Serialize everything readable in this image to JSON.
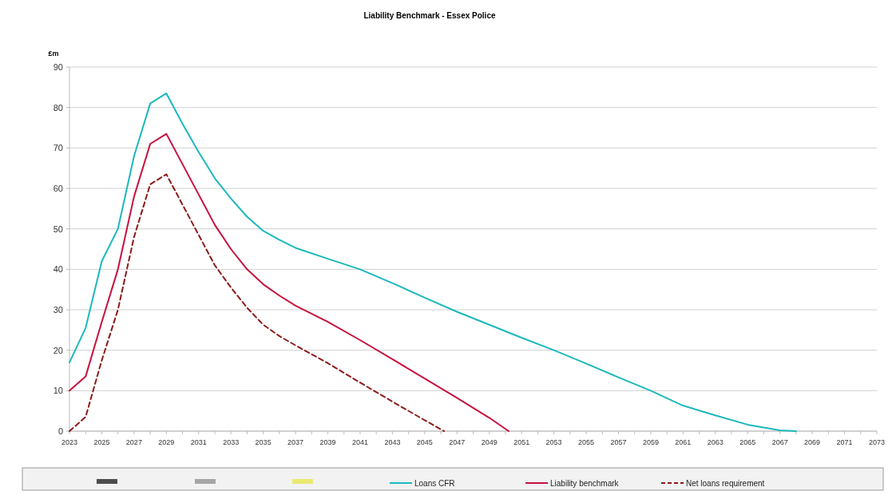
{
  "chart_data": {
    "type": "line",
    "title": "Liability Benchmark - Essex Police",
    "ylabel": "£m",
    "xlim": [
      2023,
      2073
    ],
    "xticks": [
      2023,
      {
        "value": 2024,
        "label": null
      },
      2025,
      {
        "value": 2026,
        "label": null
      },
      2027,
      {
        "value": 2028,
        "label": null
      },
      2029,
      {
        "value": 2030,
        "label": null
      },
      2031,
      {
        "value": 2032,
        "label": null
      },
      2033,
      {
        "value": 2034,
        "label": null
      },
      2035,
      {
        "value": 2036,
        "label": null
      },
      2037,
      {
        "value": 2038,
        "label": null
      },
      2039,
      {
        "value": 2040,
        "label": null
      },
      2041,
      {
        "value": 2042,
        "label": null
      },
      2043,
      {
        "value": 2044,
        "label": null
      },
      2045,
      {
        "value": 2046,
        "label": null
      },
      2047,
      {
        "value": 2048,
        "label": null
      },
      2049,
      {
        "value": 2050,
        "label": null
      },
      2051,
      {
        "value": 2052,
        "label": null
      },
      2053,
      {
        "value": 2054,
        "label": null
      },
      2055,
      {
        "value": 2056,
        "label": null
      },
      2057,
      {
        "value": 2058,
        "label": null
      },
      2059,
      {
        "value": 2060,
        "label": null
      },
      2061,
      {
        "value": 2062,
        "label": null
      },
      2063,
      {
        "value": 2064,
        "label": null
      },
      2065,
      {
        "value": 2066,
        "label": null
      },
      2067,
      {
        "value": 2068,
        "label": null
      },
      2069,
      {
        "value": 2070,
        "label": null
      },
      2071,
      {
        "value": 2072,
        "label": null
      },
      2073
    ],
    "ylim": [
      0,
      90
    ],
    "yticks": [
      0,
      10,
      20,
      30,
      40,
      50,
      60,
      70,
      80,
      90
    ],
    "grid": "y",
    "legend": "bottom",
    "marker": "none",
    "series": [
      {
        "name": "Loans CFR",
        "color": "#1cb8bd",
        "line_style": "solid",
        "x": [
          2023,
          2024,
          2025,
          2026,
          2027,
          2028,
          2029,
          2030,
          2031,
          2032,
          2033,
          2034,
          2035,
          2036,
          2037,
          2039,
          2041,
          2043,
          2045,
          2047,
          2049,
          2051,
          2053,
          2055,
          2057,
          2059,
          2061,
          2063,
          2065,
          2067,
          2068
        ],
        "values": [
          17,
          25.5,
          42,
          50,
          68,
          81,
          83.5,
          76,
          69,
          62.5,
          57.5,
          53,
          49.5,
          47.3,
          45.3,
          42.6,
          40,
          36.6,
          33,
          29.5,
          26.3,
          23.1,
          20,
          16.7,
          13.3,
          10,
          6.3,
          3.9,
          1.6,
          0.2,
          0
        ]
      },
      {
        "name": "Liability benchmark",
        "color": "#c8103e",
        "line_style": "solid",
        "x": [
          2023,
          2024,
          2025,
          2026,
          2027,
          2028,
          2029,
          2030,
          2031,
          2032,
          2033,
          2034,
          2035,
          2036,
          2037,
          2039,
          2041,
          2043,
          2045,
          2047,
          2049,
          2050.2
        ],
        "values": [
          10,
          13.5,
          27,
          40,
          58,
          71,
          73.5,
          66,
          58.5,
          51,
          45,
          40,
          36.3,
          33.5,
          31,
          27,
          22.5,
          17.8,
          13,
          8.2,
          3.3,
          0
        ]
      },
      {
        "name": "Net loans requirement",
        "color": "#8b1a1a",
        "line_style": "dashed",
        "x": [
          2023,
          2024,
          2025,
          2026,
          2027,
          2028,
          2029,
          2030,
          2031,
          2032,
          2033,
          2034,
          2035,
          2036,
          2037,
          2039,
          2041,
          2043,
          2045,
          2046.2
        ],
        "values": [
          0,
          3.5,
          17.5,
          30,
          48,
          61,
          63.5,
          56,
          48.5,
          41,
          35.5,
          30.5,
          26.3,
          23.5,
          21.2,
          16.8,
          12,
          7.3,
          2.7,
          0
        ]
      }
    ]
  }
}
